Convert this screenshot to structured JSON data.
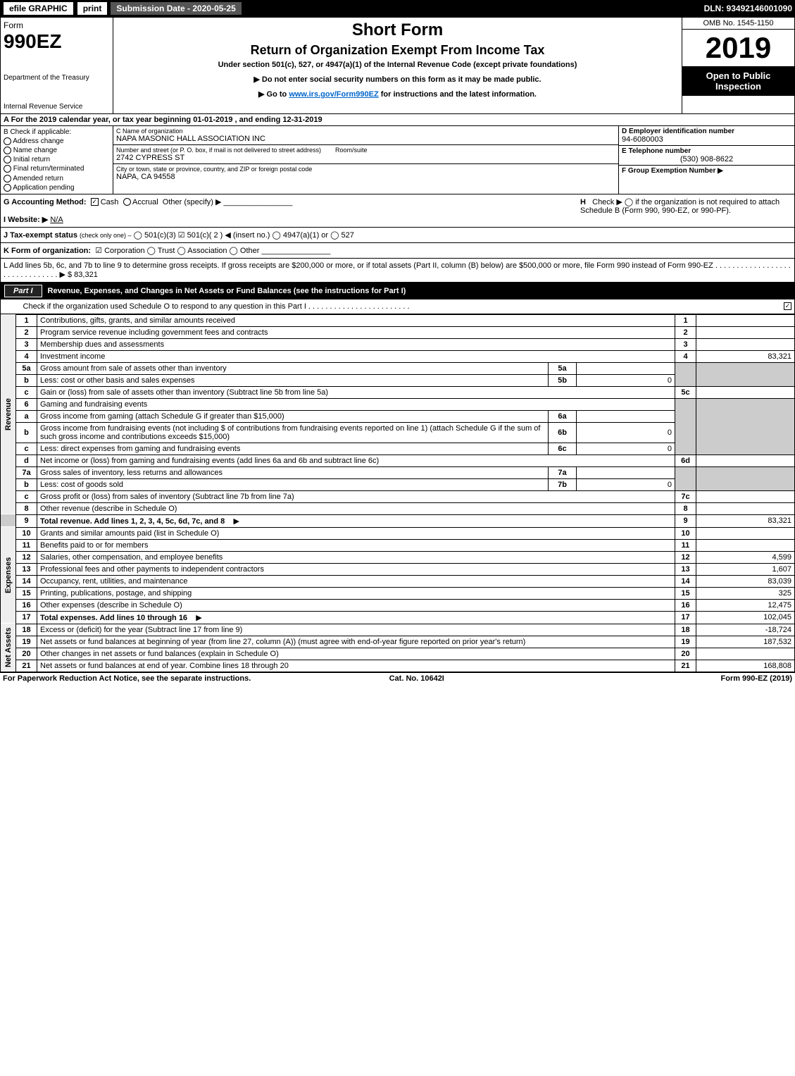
{
  "topbar": {
    "efile": "efile GRAPHIC",
    "print": "print",
    "submission_label": "Submission Date - 2020-05-25",
    "dln": "DLN: 93492146001090"
  },
  "header": {
    "form_label": "Form",
    "form_number": "990EZ",
    "dept": "Department of the Treasury",
    "irs": "Internal Revenue Service",
    "title": "Short Form",
    "subtitle": "Return of Organization Exempt From Income Tax",
    "under": "Under section 501(c), 527, or 4947(a)(1) of the Internal Revenue Code (except private foundations)",
    "ssn_note": "▶ Do not enter social security numbers on this form as it may be made public.",
    "goto": "▶ Go to www.irs.gov/Form990EZ for instructions and the latest information.",
    "goto_url": "www.irs.gov/Form990EZ",
    "omb": "OMB No. 1545-1150",
    "year": "2019",
    "open": "Open to Public Inspection"
  },
  "taxyear": "A For the 2019 calendar year, or tax year beginning 01-01-2019 , and ending 12-31-2019",
  "checkboxes": {
    "label": "B Check if applicable:",
    "items": [
      "Address change",
      "Name change",
      "Initial return",
      "Final return/terminated",
      "Amended return",
      "Application pending"
    ]
  },
  "org": {
    "name_label": "C Name of organization",
    "name": "NAPA MASONIC HALL ASSOCIATION INC",
    "street_label": "Number and street (or P. O. box, if mail is not delivered to street address)",
    "room_label": "Room/suite",
    "street": "2742 CYPRESS ST",
    "city_label": "City or town, state or province, country, and ZIP or foreign postal code",
    "city": "NAPA, CA  94558"
  },
  "ein": {
    "label": "D Employer identification number",
    "value": "94-6080003"
  },
  "phone": {
    "label": "E Telephone number",
    "value": "(530) 908-8622"
  },
  "group_exempt": {
    "label": "F Group Exemption Number ▶",
    "value": ""
  },
  "line_g": {
    "label": "G Accounting Method:",
    "cash": "Cash",
    "accrual": "Accrual",
    "other": "Other (specify) ▶"
  },
  "line_h": {
    "label": "H",
    "text": "Check ▶ ◯ if the organization is not required to attach Schedule B (Form 990, 990-EZ, or 990-PF)."
  },
  "website": {
    "label": "I Website: ▶",
    "value": "N/A"
  },
  "line_j": {
    "label": "J Tax-exempt status",
    "note": "(check only one) –",
    "opts": "◯ 501(c)(3)  ☑ 501(c)( 2 ) ◀ (insert no.)  ◯ 4947(a)(1) or  ◯ 527"
  },
  "line_k": {
    "label": "K Form of organization:",
    "opts": "☑ Corporation  ◯ Trust  ◯ Association  ◯ Other"
  },
  "line_l": {
    "text": "L Add lines 5b, 6c, and 7b to line 9 to determine gross receipts. If gross receipts are $200,000 or more, or if total assets (Part II, column (B) below) are $500,000 or more, file Form 990 instead of Form 990-EZ",
    "arrow": "▶ $",
    "value": "83,321"
  },
  "part1": {
    "title": "Revenue, Expenses, and Changes in Net Assets or Fund Balances (see the instructions for Part I)",
    "checknote": "Check if the organization used Schedule O to respond to any question in this Part I"
  },
  "sections": {
    "revenue": "Revenue",
    "expenses": "Expenses",
    "netassets": "Net Assets"
  },
  "lines": {
    "1": {
      "desc": "Contributions, gifts, grants, and similar amounts received",
      "val": ""
    },
    "2": {
      "desc": "Program service revenue including government fees and contracts",
      "val": ""
    },
    "3": {
      "desc": "Membership dues and assessments",
      "val": ""
    },
    "4": {
      "desc": "Investment income",
      "val": "83,321"
    },
    "5a": {
      "desc": "Gross amount from sale of assets other than inventory",
      "mid": ""
    },
    "5b": {
      "desc": "Less: cost or other basis and sales expenses",
      "mid": "0"
    },
    "5c": {
      "desc": "Gain or (loss) from sale of assets other than inventory (Subtract line 5b from line 5a)",
      "val": ""
    },
    "6": {
      "desc": "Gaming and fundraising events"
    },
    "6a": {
      "desc": "Gross income from gaming (attach Schedule G if greater than $15,000)",
      "mid": ""
    },
    "6b": {
      "desc": "Gross income from fundraising events (not including $                   of contributions from fundraising events reported on line 1) (attach Schedule G if the sum of such gross income and contributions exceeds $15,000)",
      "mid": "0"
    },
    "6c": {
      "desc": "Less: direct expenses from gaming and fundraising events",
      "mid": "0"
    },
    "6d": {
      "desc": "Net income or (loss) from gaming and fundraising events (add lines 6a and 6b and subtract line 6c)",
      "val": ""
    },
    "7a": {
      "desc": "Gross sales of inventory, less returns and allowances",
      "mid": ""
    },
    "7b": {
      "desc": "Less: cost of goods sold",
      "mid": "0"
    },
    "7c": {
      "desc": "Gross profit or (loss) from sales of inventory (Subtract line 7b from line 7a)",
      "val": ""
    },
    "8": {
      "desc": "Other revenue (describe in Schedule O)",
      "val": ""
    },
    "9": {
      "desc": "Total revenue. Add lines 1, 2, 3, 4, 5c, 6d, 7c, and 8",
      "val": "83,321"
    },
    "10": {
      "desc": "Grants and similar amounts paid (list in Schedule O)",
      "val": ""
    },
    "11": {
      "desc": "Benefits paid to or for members",
      "val": ""
    },
    "12": {
      "desc": "Salaries, other compensation, and employee benefits",
      "val": "4,599"
    },
    "13": {
      "desc": "Professional fees and other payments to independent contractors",
      "val": "1,607"
    },
    "14": {
      "desc": "Occupancy, rent, utilities, and maintenance",
      "val": "83,039"
    },
    "15": {
      "desc": "Printing, publications, postage, and shipping",
      "val": "325"
    },
    "16": {
      "desc": "Other expenses (describe in Schedule O)",
      "val": "12,475"
    },
    "17": {
      "desc": "Total expenses. Add lines 10 through 16",
      "val": "102,045"
    },
    "18": {
      "desc": "Excess or (deficit) for the year (Subtract line 17 from line 9)",
      "val": "-18,724"
    },
    "19": {
      "desc": "Net assets or fund balances at beginning of year (from line 27, column (A)) (must agree with end-of-year figure reported on prior year's return)",
      "val": "187,532"
    },
    "20": {
      "desc": "Other changes in net assets or fund balances (explain in Schedule O)",
      "val": ""
    },
    "21": {
      "desc": "Net assets or fund balances at end of year. Combine lines 18 through 20",
      "val": "168,808"
    }
  },
  "footer": {
    "left": "For Paperwork Reduction Act Notice, see the separate instructions.",
    "cat": "Cat. No. 10642I",
    "form": "Form 990-EZ (2019)"
  },
  "colors": {
    "black": "#000000",
    "shaded": "#cccccc",
    "link": "#0066cc"
  }
}
